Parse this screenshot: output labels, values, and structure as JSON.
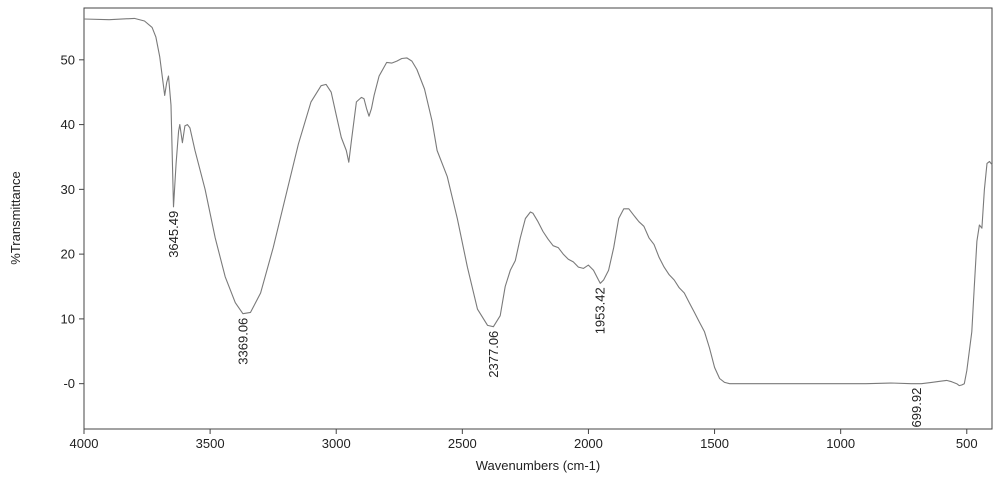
{
  "chart_data": {
    "type": "line",
    "title": "",
    "xlabel": "Wavenumbers (cm-1)",
    "ylabel": "%Transmittance",
    "xlim": [
      4000,
      400
    ],
    "ylim": [
      -7,
      58
    ],
    "x_reversed": true,
    "grid": false,
    "x_ticks": [
      4000,
      3500,
      3000,
      2500,
      2000,
      1500,
      1000,
      500
    ],
    "x_tick_labels": [
      "4000",
      "3500",
      "3000",
      "2500",
      "2000",
      "1500",
      "1000",
      "500"
    ],
    "y_ticks": [
      0,
      10,
      20,
      30,
      40,
      50
    ],
    "y_tick_labels": [
      "-0",
      "10",
      "20",
      "30",
      "40",
      "50"
    ],
    "series": [
      {
        "color": "#7a7a7a",
        "x": [
          4000,
          3900,
          3800,
          3760,
          3730,
          3715,
          3700,
          3690,
          3680,
          3672,
          3665,
          3655,
          3645,
          3635,
          3625,
          3620,
          3610,
          3600,
          3590,
          3580,
          3560,
          3520,
          3480,
          3440,
          3400,
          3370,
          3340,
          3300,
          3250,
          3200,
          3150,
          3100,
          3060,
          3040,
          3020,
          3000,
          2980,
          2960,
          2950,
          2940,
          2920,
          2900,
          2890,
          2880,
          2870,
          2860,
          2850,
          2830,
          2800,
          2780,
          2760,
          2740,
          2720,
          2700,
          2680,
          2650,
          2620,
          2600,
          2560,
          2520,
          2480,
          2440,
          2400,
          2377,
          2350,
          2330,
          2310,
          2290,
          2270,
          2250,
          2230,
          2220,
          2200,
          2180,
          2160,
          2140,
          2120,
          2100,
          2080,
          2060,
          2040,
          2020,
          2000,
          1980,
          1960,
          1953,
          1940,
          1920,
          1900,
          1880,
          1860,
          1840,
          1820,
          1800,
          1780,
          1760,
          1740,
          1720,
          1700,
          1680,
          1660,
          1640,
          1620,
          1600,
          1580,
          1560,
          1540,
          1520,
          1500,
          1480,
          1460,
          1440,
          1420,
          1410,
          1300,
          1100,
          900,
          800,
          720,
          700,
          680,
          640,
          600,
          580,
          560,
          540,
          530,
          520,
          510,
          500,
          480,
          470,
          460,
          450,
          440,
          430,
          420,
          410,
          400
        ],
        "y": [
          56.3,
          56.2,
          56.4,
          56.0,
          55.0,
          53.5,
          50.5,
          47.5,
          44.5,
          46.5,
          47.5,
          43.0,
          27.3,
          34.0,
          39.0,
          40.0,
          37.2,
          39.8,
          40.0,
          39.5,
          36.0,
          30.0,
          22.5,
          16.5,
          12.5,
          10.8,
          11.0,
          14.0,
          21.0,
          29.0,
          37.0,
          43.5,
          46.0,
          46.2,
          45.0,
          41.5,
          38.0,
          36.0,
          34.2,
          37.5,
          43.5,
          44.2,
          44.0,
          42.5,
          41.3,
          42.5,
          44.5,
          47.5,
          49.6,
          49.5,
          49.8,
          50.2,
          50.3,
          49.8,
          48.5,
          45.5,
          40.5,
          36.0,
          32.0,
          25.5,
          18.0,
          11.5,
          9.0,
          8.8,
          10.5,
          15.0,
          17.5,
          19.0,
          22.5,
          25.5,
          26.5,
          26.3,
          25.0,
          23.5,
          22.3,
          21.3,
          21.0,
          20.0,
          19.2,
          18.8,
          18.0,
          17.8,
          18.3,
          17.5,
          16.0,
          15.5,
          16.0,
          17.5,
          21.0,
          25.5,
          27.0,
          27.0,
          26.0,
          25.0,
          24.3,
          22.5,
          21.5,
          19.5,
          18.0,
          16.8,
          16.0,
          14.8,
          14.0,
          12.5,
          11.0,
          9.5,
          8.0,
          5.5,
          2.5,
          0.8,
          0.2,
          0.0,
          0.0,
          0.0,
          0.0,
          0.0,
          0.0,
          0.1,
          0.0,
          0.0,
          0.0,
          0.2,
          0.4,
          0.5,
          0.3,
          0.0,
          -0.3,
          -0.2,
          0.0,
          2.0,
          8.0,
          15.0,
          22.0,
          24.5,
          24.0,
          30.0,
          34.0,
          34.3,
          33.8
        ]
      }
    ],
    "annotations": [
      {
        "x": 3645.49,
        "y": 27.3,
        "text": "3645.49"
      },
      {
        "x": 3369.06,
        "y": 10.8,
        "text": "3369.06"
      },
      {
        "x": 2377.06,
        "y": 8.8,
        "text": "2377.06"
      },
      {
        "x": 1953.42,
        "y": 15.5,
        "text": "1953.42"
      },
      {
        "x": 699.92,
        "y": 0.0,
        "text": "699.92"
      }
    ]
  }
}
